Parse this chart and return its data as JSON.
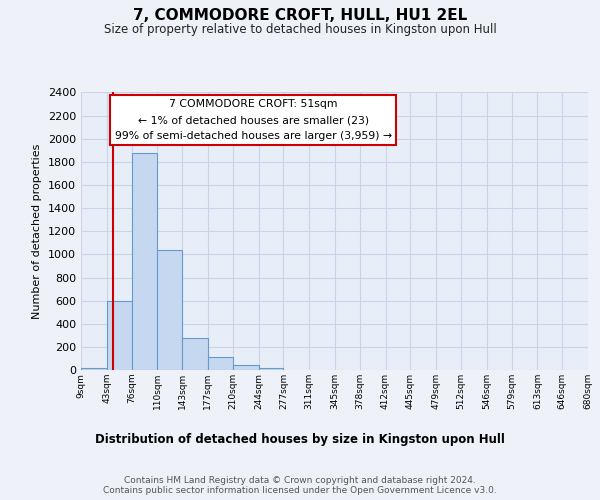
{
  "title": "7, COMMODORE CROFT, HULL, HU1 2EL",
  "subtitle": "Size of property relative to detached houses in Kingston upon Hull",
  "xlabel": "Distribution of detached houses by size in Kingston upon Hull",
  "ylabel": "Number of detached properties",
  "bin_edges": [
    9,
    43,
    76,
    110,
    143,
    177,
    210,
    244,
    277,
    311,
    345,
    378,
    412,
    445,
    479,
    512,
    546,
    579,
    613,
    646,
    680
  ],
  "bar_heights": [
    20,
    600,
    1880,
    1035,
    280,
    115,
    45,
    20,
    0,
    0,
    0,
    0,
    0,
    0,
    0,
    0,
    0,
    0,
    0,
    0
  ],
  "bar_color": "#c5d8f0",
  "bar_edge_color": "#6699cc",
  "property_line_x": 51,
  "property_line_color": "#cc0000",
  "annotation_text": "7 COMMODORE CROFT: 51sqm\n← 1% of detached houses are smaller (23)\n99% of semi-detached houses are larger (3,959) →",
  "annotation_box_color": "#ffffff",
  "annotation_box_edge_color": "#cc0000",
  "ylim": [
    0,
    2400
  ],
  "yticks": [
    0,
    200,
    400,
    600,
    800,
    1000,
    1200,
    1400,
    1600,
    1800,
    2000,
    2200,
    2400
  ],
  "xtick_labels": [
    "9sqm",
    "43sqm",
    "76sqm",
    "110sqm",
    "143sqm",
    "177sqm",
    "210sqm",
    "244sqm",
    "277sqm",
    "311sqm",
    "345sqm",
    "378sqm",
    "412sqm",
    "445sqm",
    "479sqm",
    "512sqm",
    "546sqm",
    "579sqm",
    "613sqm",
    "646sqm",
    "680sqm"
  ],
  "footer_text": "Contains HM Land Registry data © Crown copyright and database right 2024.\nContains public sector information licensed under the Open Government Licence v3.0.",
  "background_color": "#eef2f8",
  "plot_bg_color": "#e8eef8",
  "grid_color": "#c8d4e8"
}
